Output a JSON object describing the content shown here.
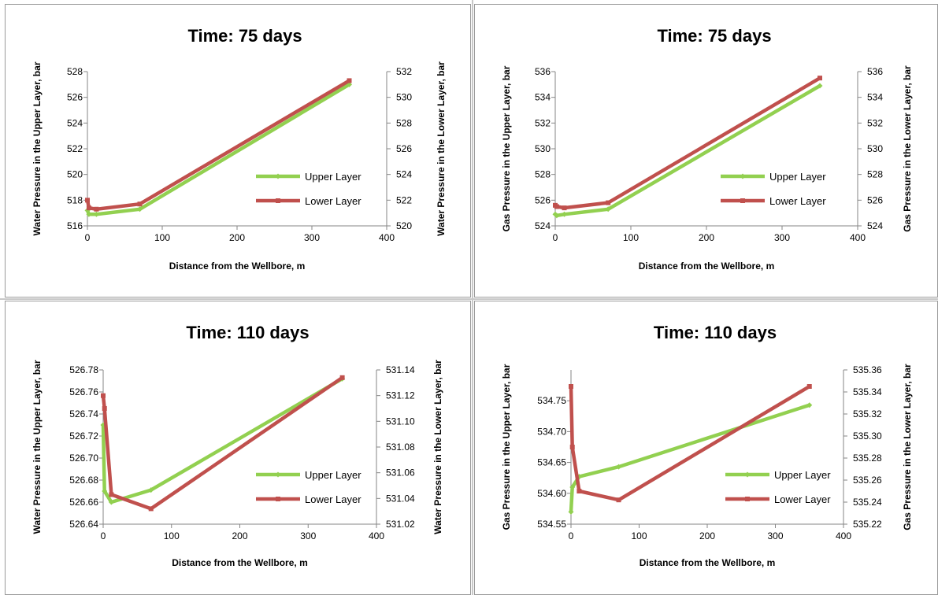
{
  "colors": {
    "upper": "#92d050",
    "lower": "#c0504d",
    "axis": "#868686",
    "text": "#000000"
  },
  "chart_data": [
    {
      "type": "line",
      "title": "Time: 75 days",
      "xlabel": "Distance from the Wellbore, m",
      "ylabel_left": "Water Pressure in the Upper Layer, bar",
      "ylabel_right": "Water Pressure in the Lower Layer, bar",
      "xlim": [
        0,
        400
      ],
      "xticks": [
        "0",
        "100",
        "200",
        "300",
        "400"
      ],
      "ylim_left": [
        516,
        528
      ],
      "yticks_left": [
        "516",
        "518",
        "520",
        "522",
        "524",
        "526",
        "528"
      ],
      "ylim_right": [
        520,
        532
      ],
      "yticks_right": [
        "520",
        "522",
        "524",
        "526",
        "528",
        "530",
        "532"
      ],
      "legend_position": "right-middle",
      "series": [
        {
          "name": "Upper Layer",
          "axis": "left",
          "marker": "diamond",
          "x": [
            0,
            2,
            12,
            70,
            350
          ],
          "y": [
            517.2,
            516.9,
            516.9,
            517.3,
            527.0
          ]
        },
        {
          "name": "Lower Layer",
          "axis": "right",
          "marker": "square",
          "x": [
            0,
            2,
            12,
            70,
            350
          ],
          "y": [
            522.0,
            521.4,
            521.3,
            521.7,
            531.3
          ]
        }
      ]
    },
    {
      "type": "line",
      "title": "Time: 75 days",
      "xlabel": "Distance from the Wellbore, m",
      "ylabel_left": "Gas Pressure in the Upper Layer, bar",
      "ylabel_right": "Gas Pressure in the Lower Layer, bar",
      "xlim": [
        0,
        400
      ],
      "xticks": [
        "0",
        "100",
        "200",
        "300",
        "400"
      ],
      "ylim_left": [
        524,
        536
      ],
      "yticks_left": [
        "524",
        "526",
        "528",
        "530",
        "532",
        "534",
        "536"
      ],
      "ylim_right": [
        524,
        536
      ],
      "yticks_right": [
        "524",
        "526",
        "528",
        "530",
        "532",
        "534",
        "536"
      ],
      "legend_position": "right-middle",
      "series": [
        {
          "name": "Upper Layer",
          "axis": "left",
          "marker": "diamond",
          "x": [
            0,
            2,
            12,
            70,
            350
          ],
          "y": [
            524.9,
            524.8,
            524.9,
            525.3,
            534.9
          ]
        },
        {
          "name": "Lower Layer",
          "axis": "right",
          "marker": "square",
          "x": [
            0,
            2,
            12,
            70,
            350
          ],
          "y": [
            525.6,
            525.5,
            525.4,
            525.8,
            535.5
          ]
        }
      ]
    },
    {
      "type": "line",
      "title": "Time: 110 days",
      "xlabel": "Distance from the Wellbore, m",
      "ylabel_left": "Water Pressure in the Upper Layer, bar",
      "ylabel_right": "Water Pressure in the Lower Layer, bar",
      "xlim": [
        0,
        400
      ],
      "xticks": [
        "0",
        "100",
        "200",
        "300",
        "400"
      ],
      "ylim_left": [
        526.64,
        526.78
      ],
      "yticks_left": [
        "526.64",
        "526.66",
        "526.68",
        "526.70",
        "526.72",
        "526.74",
        "526.76",
        "526.78"
      ],
      "ylim_right": [
        531.02,
        531.14
      ],
      "yticks_right": [
        "531.02",
        "531.04",
        "531.06",
        "531.08",
        "531.10",
        "531.12",
        "531.14"
      ],
      "legend_position": "right-middle",
      "series": [
        {
          "name": "Upper Layer",
          "axis": "left",
          "marker": "diamond",
          "x": [
            0,
            2,
            12,
            70,
            350
          ],
          "y": [
            526.73,
            526.67,
            526.66,
            526.671,
            526.772
          ]
        },
        {
          "name": "Lower Layer",
          "axis": "right",
          "marker": "square",
          "x": [
            0,
            2,
            12,
            70,
            350
          ],
          "y": [
            531.12,
            531.11,
            531.043,
            531.032,
            531.134
          ]
        }
      ]
    },
    {
      "type": "line",
      "title": "Time: 110 days",
      "xlabel": "Distance from the Wellbore, m",
      "ylabel_left": "Gas Pressure in the Upper Layer, bar",
      "ylabel_right": "Gas Pressure in the Lower Layer, bar",
      "xlim": [
        0,
        400
      ],
      "xticks": [
        "0",
        "100",
        "200",
        "300",
        "400"
      ],
      "ylim_left": [
        534.55,
        534.8
      ],
      "yticks_left": [
        "534.55",
        "534.60",
        "534.65",
        "534.70",
        "534.75"
      ],
      "ylim_right": [
        535.22,
        535.36
      ],
      "yticks_right": [
        "535.22",
        "535.24",
        "535.26",
        "535.28",
        "535.30",
        "535.32",
        "535.34",
        "535.36"
      ],
      "legend_position": "right-middle",
      "series": [
        {
          "name": "Upper Layer",
          "axis": "left",
          "marker": "diamond",
          "x": [
            0,
            2,
            12,
            70,
            350
          ],
          "y": [
            534.57,
            534.61,
            534.627,
            534.643,
            534.743
          ]
        },
        {
          "name": "Lower Layer",
          "axis": "right",
          "marker": "square",
          "x": [
            0,
            2,
            12,
            70,
            350
          ],
          "y": [
            535.345,
            535.29,
            535.25,
            535.242,
            535.345
          ]
        }
      ]
    }
  ]
}
